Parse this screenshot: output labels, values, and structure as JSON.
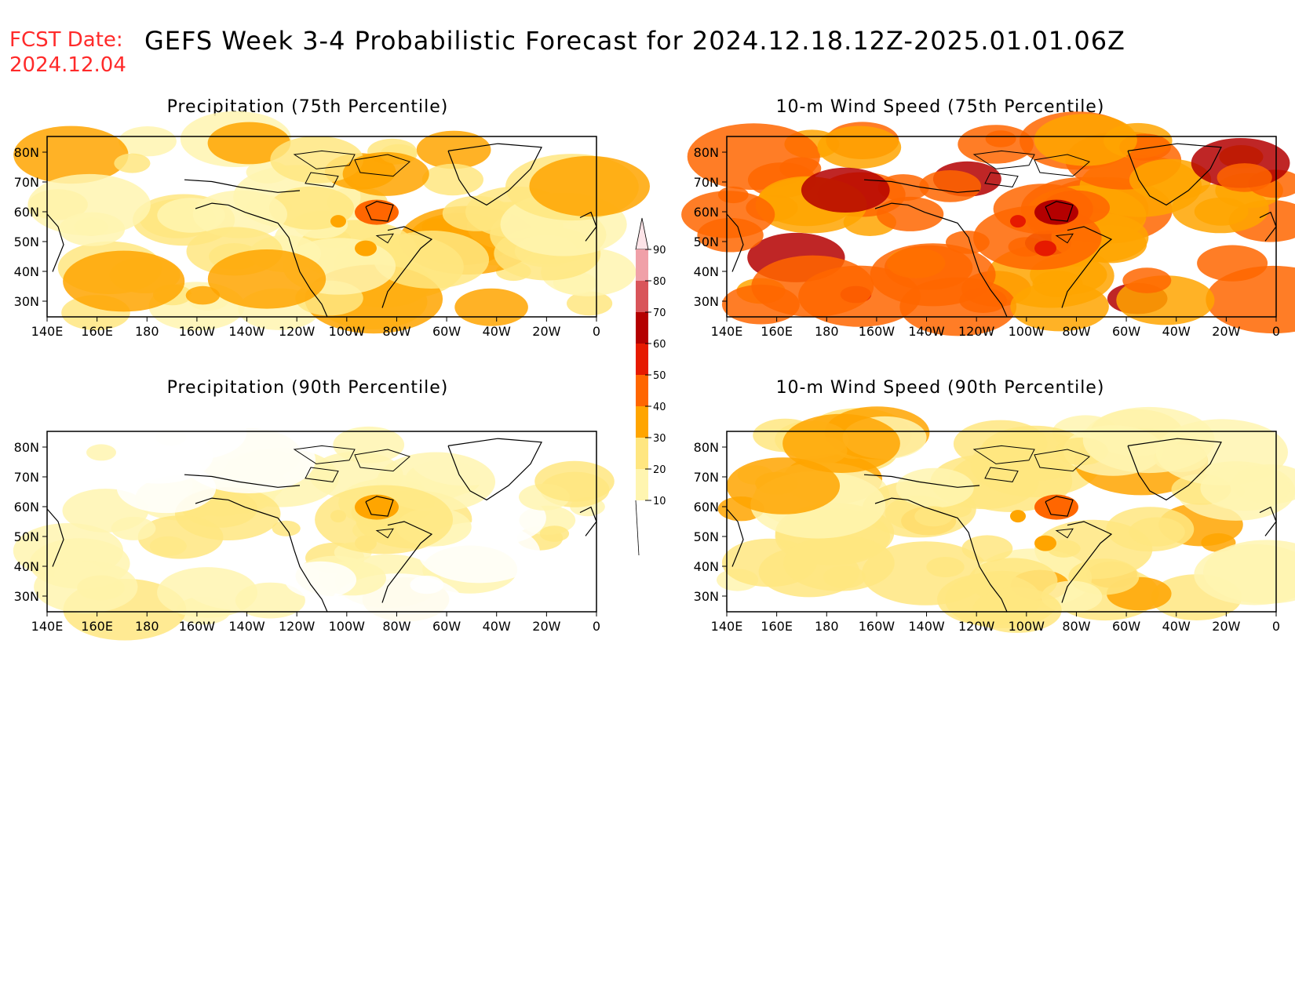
{
  "header": {
    "fcst_label": "FCST Date:",
    "fcst_date": "2024.12.04",
    "title": "GEFS Week 3-4 Probabilistic Forecast for 2024.12.18.12Z-2025.01.01.06Z"
  },
  "axes": {
    "lon_ticks": [
      "140E",
      "160E",
      "180",
      "160W",
      "140W",
      "120W",
      "100W",
      "80W",
      "60W",
      "40W",
      "20W",
      "0"
    ],
    "lat_ticks": [
      "80N",
      "70N",
      "60N",
      "50N",
      "40N",
      "30N"
    ]
  },
  "panels": [
    {
      "id": "precip-75",
      "title": "Precipitation (75th Percentile)",
      "base_level": 1
    },
    {
      "id": "wind-75",
      "title": "10-m Wind Speed (75th Percentile)",
      "base_level": 3
    },
    {
      "id": "precip-90",
      "title": "Precipitation (90th Percentile)",
      "base_level": 0
    },
    {
      "id": "wind-90",
      "title": "10-m Wind Speed (90th Percentile)",
      "base_level": 1
    }
  ],
  "colorbar": {
    "levels": [
      "10",
      "20",
      "30",
      "40",
      "50",
      "60",
      "70",
      "80",
      "90"
    ],
    "colors": [
      "#fff5b0",
      "#ffe680",
      "#ffa500",
      "#ff6600",
      "#e61a00",
      "#b40000",
      "#d9555a",
      "#f0a0a8"
    ]
  }
}
